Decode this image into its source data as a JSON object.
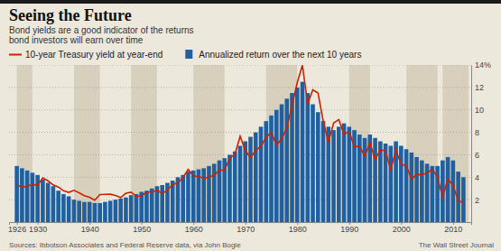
{
  "chart_data": {
    "type": "bar",
    "title": "Seeing the Future",
    "subtitle": "Bond yields are a good indicator of the returns\nbond investors will earn over time",
    "x": [
      1926,
      1927,
      1928,
      1929,
      1930,
      1931,
      1932,
      1933,
      1934,
      1935,
      1936,
      1937,
      1938,
      1939,
      1940,
      1941,
      1942,
      1943,
      1944,
      1945,
      1946,
      1947,
      1948,
      1949,
      1950,
      1951,
      1952,
      1953,
      1954,
      1955,
      1956,
      1957,
      1958,
      1959,
      1960,
      1961,
      1962,
      1963,
      1964,
      1965,
      1966,
      1967,
      1968,
      1969,
      1970,
      1971,
      1972,
      1973,
      1974,
      1975,
      1976,
      1977,
      1978,
      1979,
      1980,
      1981,
      1982,
      1983,
      1984,
      1985,
      1986,
      1987,
      1988,
      1989,
      1990,
      1991,
      1992,
      1993,
      1994,
      1995,
      1996,
      1997,
      1998,
      1999,
      2000,
      2001,
      2002,
      2003,
      2004,
      2005,
      2006,
      2007,
      2008,
      2009,
      2010,
      2011,
      2012
    ],
    "series": [
      {
        "name": "10-year Treasury yield at year-end",
        "type": "line",
        "color": "#cc2200",
        "values": [
          3.34,
          3.09,
          3.22,
          3.35,
          3.29,
          3.94,
          3.68,
          3.31,
          3.12,
          2.79,
          2.65,
          2.83,
          2.61,
          2.36,
          2.21,
          1.95,
          2.46,
          2.47,
          2.48,
          2.37,
          2.19,
          2.57,
          2.66,
          2.31,
          2.32,
          2.69,
          2.68,
          2.83,
          2.55,
          2.84,
          3.36,
          3.47,
          3.99,
          4.69,
          4.12,
          4.06,
          3.9,
          4.0,
          4.18,
          4.62,
          4.64,
          5.7,
          6.03,
          7.65,
          6.39,
          5.74,
          6.41,
          6.74,
          7.56,
          7.99,
          6.87,
          7.42,
          8.41,
          10.39,
          12.43,
          13.98,
          10.54,
          11.79,
          11.51,
          8.99,
          7.11,
          8.83,
          9.14,
          7.84,
          8.08,
          6.7,
          6.77,
          5.87,
          7.08,
          5.57,
          6.44,
          6.35,
          4.65,
          6.45,
          5.11,
          5.05,
          3.82,
          4.25,
          4.22,
          4.39,
          4.7,
          4.02,
          2.21,
          3.84,
          3.29,
          1.88,
          1.76
        ]
      },
      {
        "name": "Annualized return over the next 10 years",
        "type": "bar",
        "color": "#2060a0",
        "values": [
          5.0,
          4.8,
          4.6,
          4.4,
          4.2,
          3.8,
          3.5,
          3.2,
          2.8,
          2.5,
          2.3,
          2.0,
          1.9,
          1.8,
          1.8,
          1.7,
          1.7,
          1.8,
          1.9,
          2.0,
          2.1,
          2.2,
          2.4,
          2.5,
          2.7,
          2.8,
          3.0,
          3.2,
          3.3,
          3.5,
          3.7,
          4.0,
          4.2,
          4.5,
          4.6,
          4.7,
          4.8,
          5.0,
          5.2,
          5.5,
          5.7,
          6.0,
          6.3,
          6.8,
          7.2,
          7.6,
          8.0,
          8.5,
          9.0,
          9.5,
          10.0,
          10.5,
          11.0,
          11.5,
          12.0,
          12.5,
          11.5,
          10.5,
          9.8,
          9.0,
          8.5,
          8.2,
          8.5,
          8.8,
          8.5,
          8.2,
          7.8,
          7.5,
          7.8,
          7.5,
          7.2,
          7.0,
          6.8,
          7.2,
          6.8,
          6.5,
          6.2,
          5.8,
          5.5,
          5.2,
          5.0,
          5.0,
          5.5,
          5.8,
          5.5,
          4.5,
          4.0
        ]
      }
    ],
    "bands": {
      "color": "#d8d0bc",
      "ranges": [
        [
          1926,
          1929
        ],
        [
          1937,
          1942
        ],
        [
          1948,
          1953
        ],
        [
          1960,
          1966
        ],
        [
          1974,
          1980
        ],
        [
          1990,
          1994
        ],
        [
          2001,
          2007
        ],
        [
          2008,
          2013
        ]
      ]
    },
    "background_color": "#ede8dc",
    "xlim": [
      1924.5,
      2013.5
    ],
    "xticks": [
      1926,
      1930,
      1940,
      1950,
      1960,
      1970,
      1980,
      1990,
      2000,
      2010
    ],
    "ylim": [
      0,
      14
    ],
    "yticks": [
      2,
      4,
      6,
      8,
      10,
      12,
      {
        "value": 14,
        "label": "14%"
      }
    ],
    "grid": true,
    "annotations": [
      "Sources: Ibbotson Associates and Federal Reserve data, via John Bogle",
      "The Wall Street Journal"
    ]
  }
}
